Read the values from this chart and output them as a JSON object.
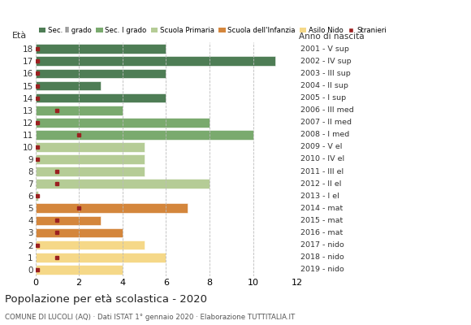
{
  "ages": [
    18,
    17,
    16,
    15,
    14,
    13,
    12,
    11,
    10,
    9,
    8,
    7,
    6,
    5,
    4,
    3,
    2,
    1,
    0
  ],
  "right_labels": [
    "2001 - V sup",
    "2002 - IV sup",
    "2003 - III sup",
    "2004 - II sup",
    "2005 - I sup",
    "2006 - III med",
    "2007 - II med",
    "2008 - I med",
    "2009 - V el",
    "2010 - IV el",
    "2011 - III el",
    "2012 - II el",
    "2013 - I el",
    "2014 - mat",
    "2015 - mat",
    "2016 - mat",
    "2017 - nido",
    "2018 - nido",
    "2019 - nido"
  ],
  "bar_values": [
    6,
    11,
    6,
    3,
    6,
    4,
    8,
    10,
    5,
    5,
    5,
    8,
    0.12,
    7,
    3,
    4,
    5,
    6,
    4
  ],
  "bar_colors": [
    "#4e7d55",
    "#4e7d55",
    "#4e7d55",
    "#4e7d55",
    "#4e7d55",
    "#7aaa6e",
    "#7aaa6e",
    "#7aaa6e",
    "#b5cc96",
    "#b5cc96",
    "#b5cc96",
    "#b5cc96",
    "#b5cc96",
    "#d4863c",
    "#d4863c",
    "#d4863c",
    "#f5d888",
    "#f5d888",
    "#f5d888"
  ],
  "stranieri_present": [
    false,
    false,
    false,
    false,
    false,
    true,
    false,
    true,
    false,
    false,
    true,
    true,
    false,
    true,
    true,
    true,
    false,
    true,
    false
  ],
  "stranieri_x": [
    1,
    1,
    1,
    1,
    1,
    1,
    1,
    2,
    1,
    1,
    1,
    1,
    1,
    2,
    1,
    1,
    1,
    1,
    1
  ],
  "stranieri_color": "#9b2020",
  "legend_labels": [
    "Sec. II grado",
    "Sec. I grado",
    "Scuola Primaria",
    "Scuola dell'Infanzia",
    "Asilo Nido",
    "Stranieri"
  ],
  "legend_colors": [
    "#4e7d55",
    "#7aaa6e",
    "#b5cc96",
    "#d4863c",
    "#f5d888",
    "#9b2020"
  ],
  "title": "Popolazione per età scolastica - 2020",
  "subtitle": "COMUNE DI LUCOLI (AQ) · Dati ISTAT 1° gennaio 2020 · Elaborazione TUTTITALIA.IT",
  "label_eta": "Età",
  "label_anno": "Anno di nascita",
  "xlim": [
    0,
    12
  ],
  "xticks": [
    0,
    2,
    4,
    6,
    8,
    10,
    12
  ],
  "background_color": "#ffffff",
  "grid_color": "#bbbbbb"
}
